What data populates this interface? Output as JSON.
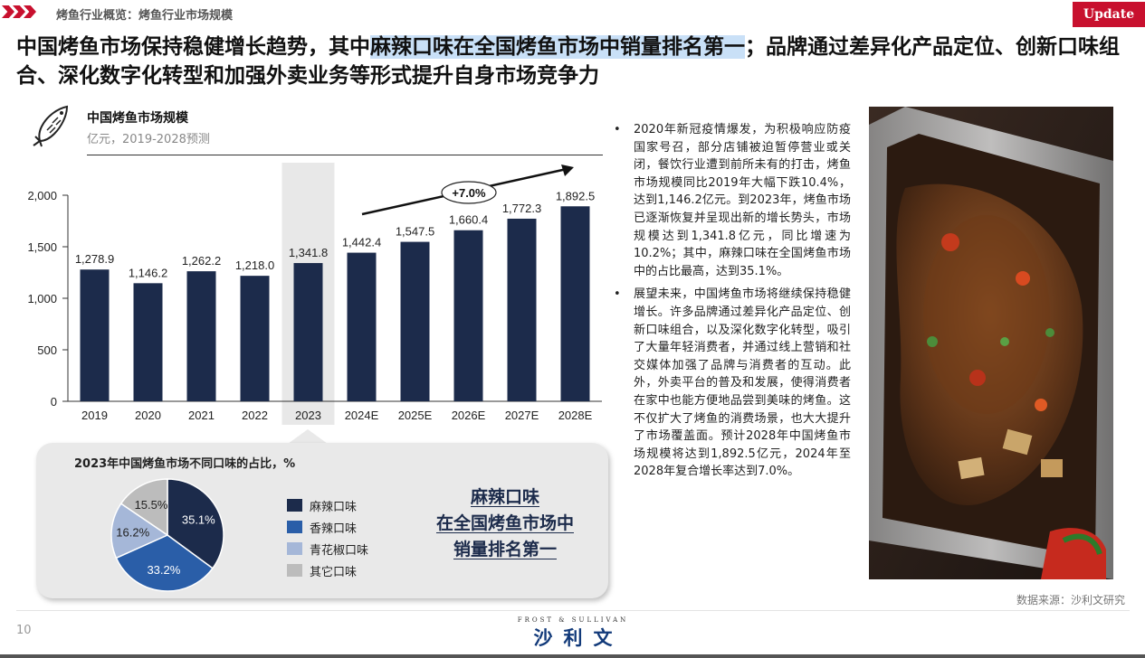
{
  "header": {
    "breadcrumb": "烤鱼行业概览：烤鱼行业市场规模",
    "badge": "Update",
    "headline_before": "中国烤鱼市场保持稳健增长趋势，其中",
    "headline_highlight": "麻辣口味在全国烤鱼市场中销量排名第一",
    "headline_after": "；品牌通过差异化产品定位、创新口味组合、深化数字化转型和加强外卖业务等形式提升自身市场竞争力"
  },
  "chart_data": [
    {
      "type": "bar",
      "title": "中国烤鱼市场规模",
      "subtitle": "亿元，2019-2028预测",
      "categories": [
        "2019",
        "2020",
        "2021",
        "2022",
        "2023",
        "2024E",
        "2025E",
        "2026E",
        "2027E",
        "2028E"
      ],
      "values": [
        1278.9,
        1146.2,
        1262.2,
        1218.0,
        1341.8,
        1442.4,
        1547.5,
        1660.4,
        1772.3,
        1892.5
      ],
      "value_labels": [
        "1,278.9",
        "1,146.2",
        "1,262.2",
        "1,218.0",
        "1,341.8",
        "1,442.4",
        "1,547.5",
        "1,660.4",
        "1,772.3",
        "1,892.5"
      ],
      "ylim": [
        0,
        2000
      ],
      "yticks": [
        0,
        500,
        1000,
        1500,
        2000
      ],
      "ytick_labels": [
        "0",
        "500",
        "1,000",
        "1,500",
        "2,000"
      ],
      "highlighted_category": "2023",
      "growth_annotation": "+7.0%",
      "bar_color": "#1c2b4b",
      "highlight_color": "#e8e8e8",
      "grid": false
    },
    {
      "type": "pie",
      "title": "2023年中国烤鱼市场不同口味的占比，%",
      "labels": [
        "麻辣口味",
        "香辣口味",
        "青花椒口味",
        "其它口味"
      ],
      "values": [
        35.1,
        33.2,
        16.2,
        15.5
      ],
      "value_labels": [
        "35.1%",
        "33.2%",
        "16.2%",
        "15.5%"
      ],
      "colors": [
        "#1c2b4b",
        "#2a5ea8",
        "#a5b7d8",
        "#bcbcbc"
      ],
      "label_colors": [
        "#ffffff",
        "#ffffff",
        "#222222",
        "#222222"
      ],
      "legend_position": "right"
    }
  ],
  "callout": {
    "line1": "麻辣口味",
    "line2": "在全国烤鱼市场中",
    "line3": "销量排名第一"
  },
  "bullets": [
    "2020年新冠疫情爆发，为积极响应防疫国家号召，部分店铺被迫暂停营业或关闭，餐饮行业遭到前所未有的打击，烤鱼市场规模同比2019年大幅下跌10.4%，达到1,146.2亿元。到2023年，烤鱼市场已逐渐恢复并呈现出新的增长势头，市场规模达到1,341.8亿元，同比增速为10.2%；其中，麻辣口味在全国烤鱼市场中的占比最高，达到35.1%。",
    "展望未来，中国烤鱼市场将继续保持稳健增长。许多品牌通过差异化产品定位、创新口味组合，以及深化数字化转型，吸引了大量年轻消费者，并通过线上营销和社交媒体加强了品牌与消费者的互动。此外，外卖平台的普及和发展，使得消费者在家中也能方便地品尝到美味的烤鱼。这不仅扩大了烤鱼的消费场景，也大大提升了市场覆盖面。预计2028年中国烤鱼市场规模将达到1,892.5亿元，2024年至2028年复合增长率达到7.0%。"
  ],
  "bullet_marker": "•",
  "footer": {
    "source": "数据来源：沙利文研究",
    "page_number": "10",
    "logo_top": "FROST & SULLIVAN",
    "logo_main": "沙利文"
  },
  "colors": {
    "brand_red": "#c8102e",
    "navy": "#1c2b4b",
    "highlight": "#c9e0f7"
  },
  "icons": {
    "header": "chevron-arrows-icon",
    "chart": "fish-icon"
  }
}
